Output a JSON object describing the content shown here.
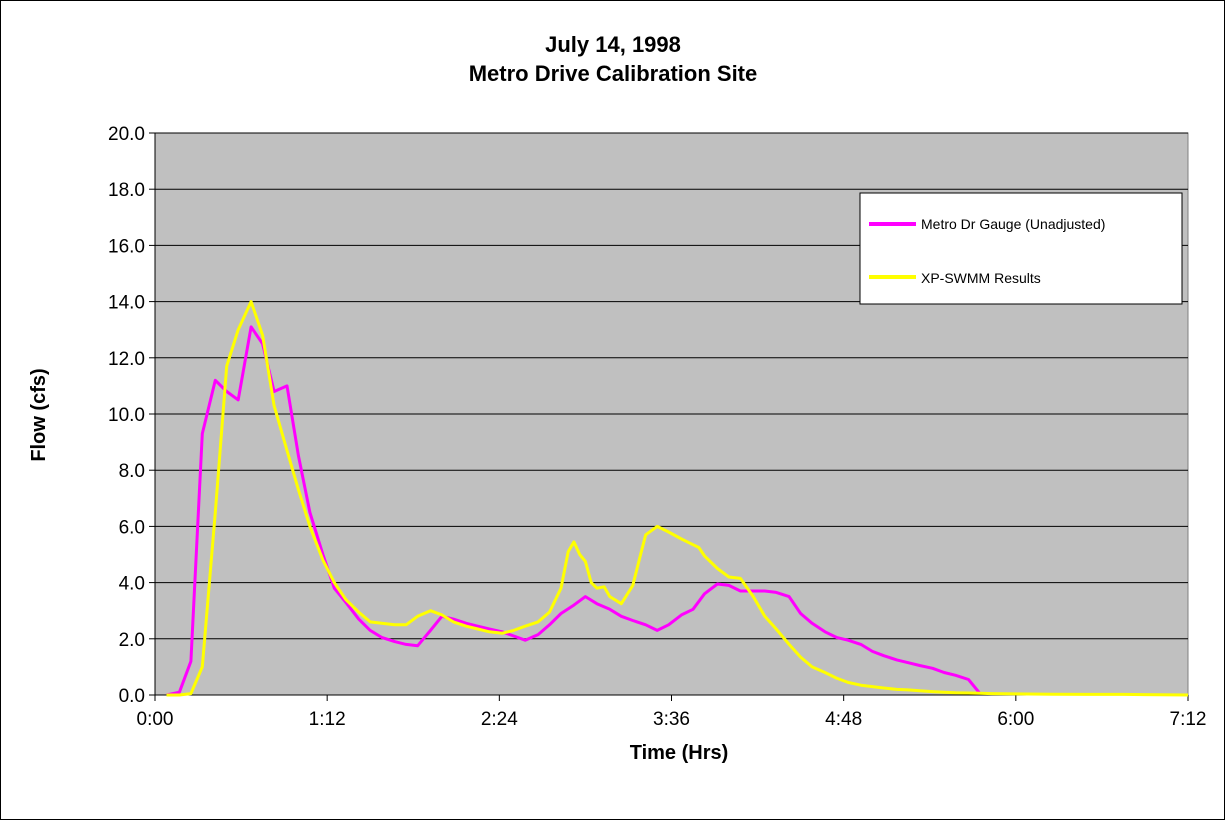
{
  "chart_data": {
    "type": "line",
    "title": [
      "July 14, 1998",
      "Metro Drive Calibration Site"
    ],
    "xlabel": "Time (Hrs)",
    "ylabel": "Flow (cfs)",
    "x_unit": "hours",
    "xlim": [
      0,
      7.2
    ],
    "ylim": [
      0,
      20
    ],
    "x_ticks": [
      {
        "value": 0.0,
        "label": "0:00"
      },
      {
        "value": 1.2,
        "label": "1:12"
      },
      {
        "value": 2.4,
        "label": "2:24"
      },
      {
        "value": 3.6,
        "label": "3:36"
      },
      {
        "value": 4.8,
        "label": "4:48"
      },
      {
        "value": 6.0,
        "label": "6:00"
      },
      {
        "value": 7.2,
        "label": "7:12"
      }
    ],
    "y_ticks": [
      "0.0",
      "2.0",
      "4.0",
      "6.0",
      "8.0",
      "10.0",
      "12.0",
      "14.0",
      "16.0",
      "18.0",
      "20.0"
    ],
    "grid": "horizontal",
    "plot_background": "#c0c0c0",
    "legend_position": "top-right",
    "series": [
      {
        "name": "Metro Dr Gauge (Unadjusted)",
        "color": "#ff00ff",
        "x": [
          0.08,
          0.17,
          0.25,
          0.33,
          0.42,
          0.5,
          0.58,
          0.67,
          0.75,
          0.83,
          0.92,
          1.0,
          1.08,
          1.17,
          1.25,
          1.33,
          1.42,
          1.5,
          1.58,
          1.67,
          1.75,
          1.83,
          1.92,
          2.0,
          2.08,
          2.17,
          2.25,
          2.33,
          2.42,
          2.5,
          2.58,
          2.67,
          2.75,
          2.83,
          2.92,
          3.0,
          3.08,
          3.17,
          3.25,
          3.33,
          3.42,
          3.5,
          3.58,
          3.67,
          3.75,
          3.83,
          3.92,
          4.0,
          4.08,
          4.17,
          4.25,
          4.33,
          4.42,
          4.5,
          4.58,
          4.67,
          4.75,
          4.83,
          4.92,
          5.0,
          5.08,
          5.17,
          5.25,
          5.33,
          5.42,
          5.5,
          5.58,
          5.67,
          5.75
        ],
        "y": [
          0.0,
          0.1,
          1.2,
          9.3,
          11.2,
          10.8,
          10.5,
          13.1,
          12.5,
          10.8,
          11.0,
          8.5,
          6.5,
          5.0,
          3.8,
          3.3,
          2.7,
          2.3,
          2.05,
          1.9,
          1.8,
          1.75,
          2.3,
          2.8,
          2.7,
          2.55,
          2.45,
          2.35,
          2.25,
          2.1,
          1.95,
          2.15,
          2.5,
          2.9,
          3.2,
          3.5,
          3.25,
          3.05,
          2.8,
          2.65,
          2.5,
          2.3,
          2.5,
          2.85,
          3.05,
          3.6,
          3.95,
          3.9,
          3.7,
          3.7,
          3.7,
          3.65,
          3.5,
          2.9,
          2.55,
          2.25,
          2.05,
          1.95,
          1.8,
          1.55,
          1.4,
          1.25,
          1.15,
          1.05,
          0.95,
          0.8,
          0.7,
          0.55,
          0.05
        ]
      },
      {
        "name": "XP-SWMM Results",
        "color": "#ffff00",
        "x": [
          0.08,
          0.17,
          0.25,
          0.33,
          0.42,
          0.5,
          0.58,
          0.67,
          0.75,
          0.83,
          0.92,
          1.0,
          1.08,
          1.17,
          1.25,
          1.33,
          1.42,
          1.5,
          1.58,
          1.67,
          1.75,
          1.83,
          1.92,
          2.0,
          2.08,
          2.17,
          2.25,
          2.33,
          2.42,
          2.5,
          2.58,
          2.67,
          2.75,
          2.83,
          2.88,
          2.92,
          2.96,
          3.0,
          3.04,
          3.08,
          3.13,
          3.17,
          3.25,
          3.33,
          3.38,
          3.42,
          3.5,
          3.58,
          3.67,
          3.75,
          3.79,
          3.83,
          3.92,
          4.0,
          4.08,
          4.17,
          4.25,
          4.33,
          4.42,
          4.5,
          4.58,
          4.67,
          4.75,
          4.83,
          4.92,
          5.0,
          5.08,
          5.17,
          5.25,
          5.33,
          5.42,
          5.5,
          5.58,
          5.67,
          5.75,
          5.83,
          6.0,
          6.25,
          6.5,
          6.75,
          7.0,
          7.2
        ],
        "y": [
          0.0,
          0.0,
          0.05,
          1.0,
          6.5,
          11.7,
          13.0,
          14.0,
          12.8,
          10.3,
          8.7,
          7.3,
          6.0,
          4.8,
          4.0,
          3.4,
          2.95,
          2.6,
          2.55,
          2.5,
          2.5,
          2.8,
          3.0,
          2.85,
          2.6,
          2.45,
          2.35,
          2.25,
          2.2,
          2.3,
          2.45,
          2.6,
          2.95,
          3.8,
          5.1,
          5.45,
          5.0,
          4.75,
          4.0,
          3.8,
          3.85,
          3.5,
          3.25,
          3.9,
          4.9,
          5.7,
          6.0,
          5.8,
          5.55,
          5.35,
          5.25,
          4.95,
          4.5,
          4.2,
          4.15,
          3.5,
          2.8,
          2.35,
          1.8,
          1.35,
          1.0,
          0.8,
          0.6,
          0.45,
          0.35,
          0.3,
          0.25,
          0.2,
          0.18,
          0.15,
          0.12,
          0.1,
          0.08,
          0.07,
          0.06,
          0.05,
          0.04,
          0.03,
          0.02,
          0.02,
          0.01,
          0.0
        ]
      }
    ]
  }
}
